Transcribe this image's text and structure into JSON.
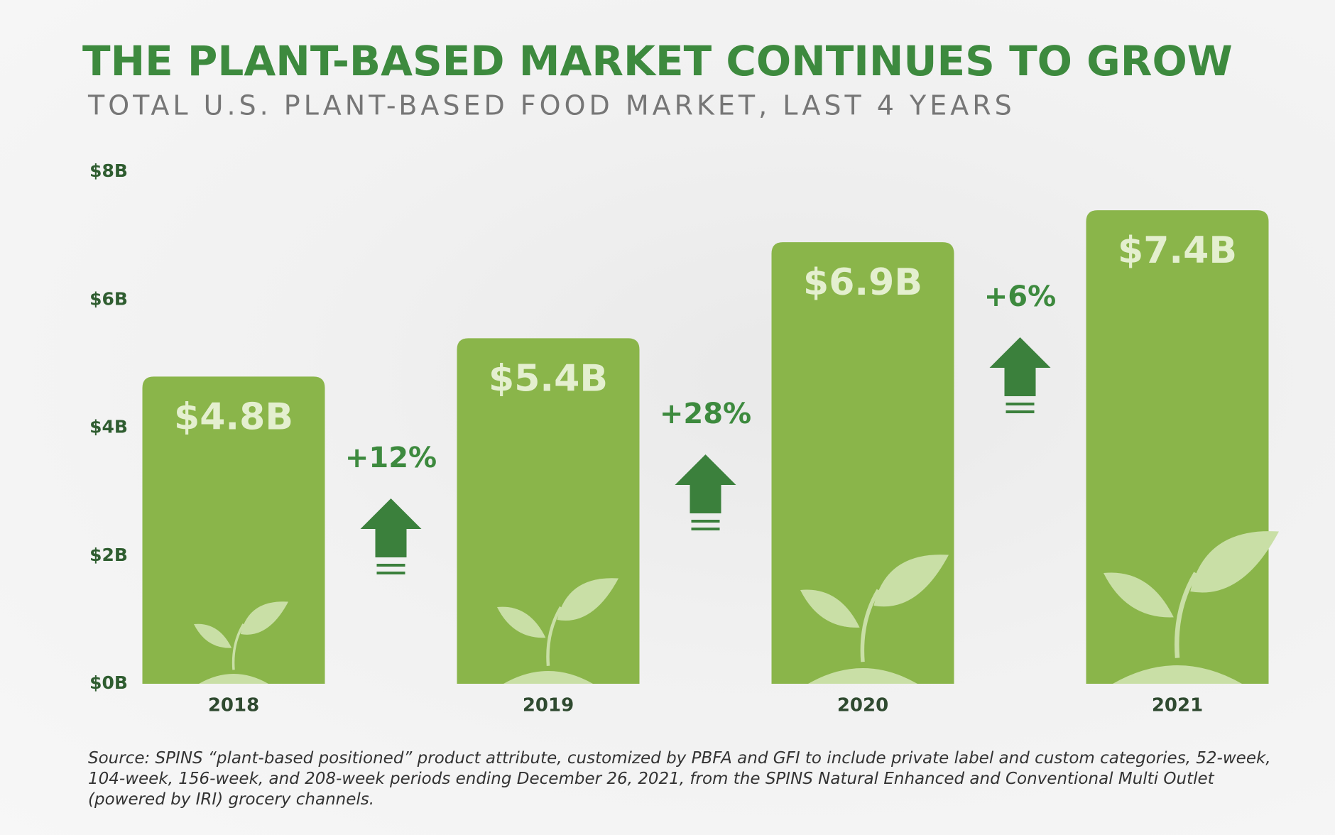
{
  "chart_data": {
    "type": "bar",
    "title": "THE PLANT-BASED MARKET CONTINUES TO GROW",
    "subtitle": "TOTAL U.S. PLANT-BASED FOOD MARKET, LAST 4 YEARS",
    "categories": [
      "2018",
      "2019",
      "2020",
      "2021"
    ],
    "values": [
      4.8,
      5.4,
      6.9,
      7.4
    ],
    "value_labels": [
      "$4.8B",
      "$5.4B",
      "$6.9B",
      "$7.4B"
    ],
    "color": "#8ab54a",
    "ylim": [
      0,
      8
    ],
    "yticks": [
      {
        "value": 0,
        "label": "$0B"
      },
      {
        "value": 2,
        "label": "$2B"
      },
      {
        "value": 4,
        "label": "$4B"
      },
      {
        "value": 6,
        "label": "$6B"
      },
      {
        "value": 8,
        "label": "$8B"
      }
    ],
    "annotations": [
      "+12%",
      "+28%",
      "+6%"
    ],
    "source": "Source: SPINS “plant-based positioned” product attribute, customized by PBFA and GFI to include private label and custom categories, 52-week, 104-week, 156-week, and 208-week periods ending December 26, 2021, from the SPINS Natural Enhanced and Conventional Multi Outlet (powered by IRI) grocery channels."
  }
}
